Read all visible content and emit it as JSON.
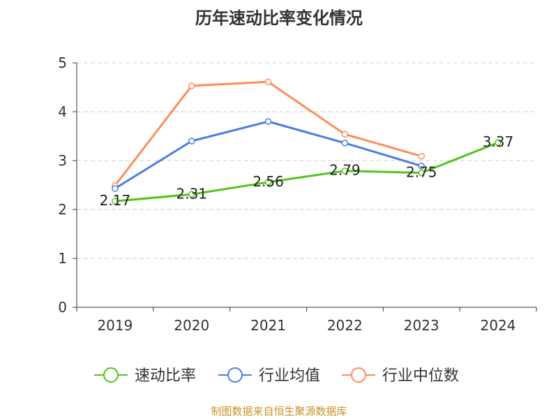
{
  "chart_data": {
    "type": "line",
    "title": "历年速动比率变化情况",
    "categories": [
      "2019",
      "2020",
      "2021",
      "2022",
      "2023",
      "2024"
    ],
    "ylim": [
      0,
      5
    ],
    "yticks": [
      0,
      1,
      2,
      3,
      4,
      5
    ],
    "grid": true,
    "legend_position": "bottom",
    "series": [
      {
        "name": "速动比率",
        "color": "#52c41a",
        "values": [
          2.17,
          2.31,
          2.56,
          2.79,
          2.75,
          3.37
        ],
        "labels": [
          "2.17",
          "2.31",
          "2.56",
          "2.79",
          "2.75",
          "3.37"
        ]
      },
      {
        "name": "行业均值",
        "color": "#4a7fe0",
        "values": [
          2.43,
          3.4,
          3.8,
          3.36,
          2.89,
          null
        ]
      },
      {
        "name": "行业中位数",
        "color": "#ff8c5a",
        "values": [
          2.49,
          4.53,
          4.61,
          3.54,
          3.09,
          null
        ]
      }
    ]
  },
  "source": "制图数据来自恒生聚源数据库"
}
